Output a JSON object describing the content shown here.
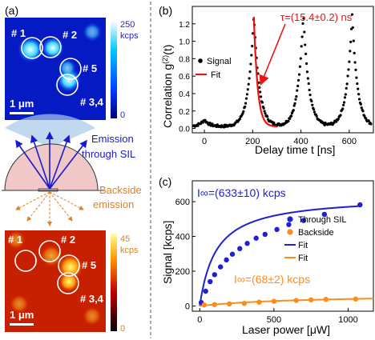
{
  "panels": {
    "a": {
      "label": "(a)",
      "top_map": {
        "colorbar_max": "250",
        "colorbar_unit": "kcps",
        "colorbar_min": "0",
        "spots": [
          "# 1",
          "# 2",
          "# 5",
          "# 3,4"
        ],
        "scalebar": "1 μm"
      },
      "sketch": {
        "emission_sil": [
          "Emission",
          "through SIL"
        ],
        "backside": [
          "Backside",
          "emission"
        ]
      },
      "bottom_map": {
        "colorbar_max": "45",
        "colorbar_unit": "kcps",
        "colorbar_min": "0",
        "spots": [
          "# 1",
          "# 2",
          "# 5",
          "# 3,4"
        ],
        "scalebar": "1 μm"
      }
    },
    "b": {
      "label": "(b)"
    },
    "c": {
      "label": "(c)"
    }
  },
  "chart_data": [
    {
      "type": "scatter",
      "panel": "b",
      "xlabel": "Delay time t [ns]",
      "ylabel": "Correlation g(2)(t)",
      "xticks": [
        "0",
        "200",
        "400",
        "600"
      ],
      "yticks": [
        "0.0",
        "0.2",
        "0.4",
        "0.6",
        "0.8",
        "1.0",
        "1.2"
      ],
      "xlim": [
        -50,
        700
      ],
      "ylim": [
        -0.05,
        1.4
      ],
      "legend": [
        "Signal",
        "Fit"
      ],
      "legend_position": "top-left",
      "annotation": "τ=(15.4±0.2) ns",
      "peaks": [
        {
          "center": 0,
          "height": 0.08
        },
        {
          "center": 205,
          "height": 1.29
        },
        {
          "center": 410,
          "height": 1.31
        },
        {
          "center": 612,
          "height": 1.29
        }
      ],
      "peak_width_ns": 22,
      "fit": {
        "center": 205,
        "height": 1.26,
        "x_range": [
          205,
          300
        ]
      }
    },
    {
      "type": "line",
      "panel": "c",
      "xlabel": "Laser power [μW]",
      "ylabel": "Signal [kcps]",
      "xticks": [
        "0",
        "500",
        "1000"
      ],
      "yticks": [
        "0",
        "200",
        "400",
        "600"
      ],
      "xlim": [
        -50,
        1170
      ],
      "ylim": [
        -30,
        720
      ],
      "legend": [
        "Through SIL",
        "Backside",
        "Fit",
        "Fit"
      ],
      "legend_position": "right",
      "annotations": [
        "I∞=(633±10) kcps",
        "I∞=(68±2) kcps"
      ],
      "series": [
        {
          "name": "Through SIL",
          "color": "#1f1fd6",
          "x": [
            10,
            40,
            70,
            100,
            140,
            180,
            220,
            270,
            320,
            380,
            440,
            520,
            600,
            700,
            840,
            1080
          ],
          "y": [
            20,
            85,
            140,
            180,
            225,
            265,
            298,
            330,
            360,
            390,
            412,
            440,
            468,
            492,
            527,
            582
          ]
        },
        {
          "name": "Backside",
          "color": "#ff8c1a",
          "x": [
            30,
            100,
            200,
            300,
            400,
            500,
            650,
            750,
            850,
            1050
          ],
          "y": [
            6,
            8,
            12,
            15,
            22,
            27,
            32,
            35,
            38,
            40
          ]
        }
      ],
      "fits": [
        {
          "name": "Fit",
          "color": "#1f1fd6",
          "Isat": 633,
          "Psat": 110,
          "x_range": [
            0,
            1090
          ]
        },
        {
          "name": "Fit",
          "color": "#ff8c1a",
          "Isat": 68,
          "Psat": 700,
          "x_range": [
            0,
            1170
          ]
        }
      ]
    }
  ]
}
